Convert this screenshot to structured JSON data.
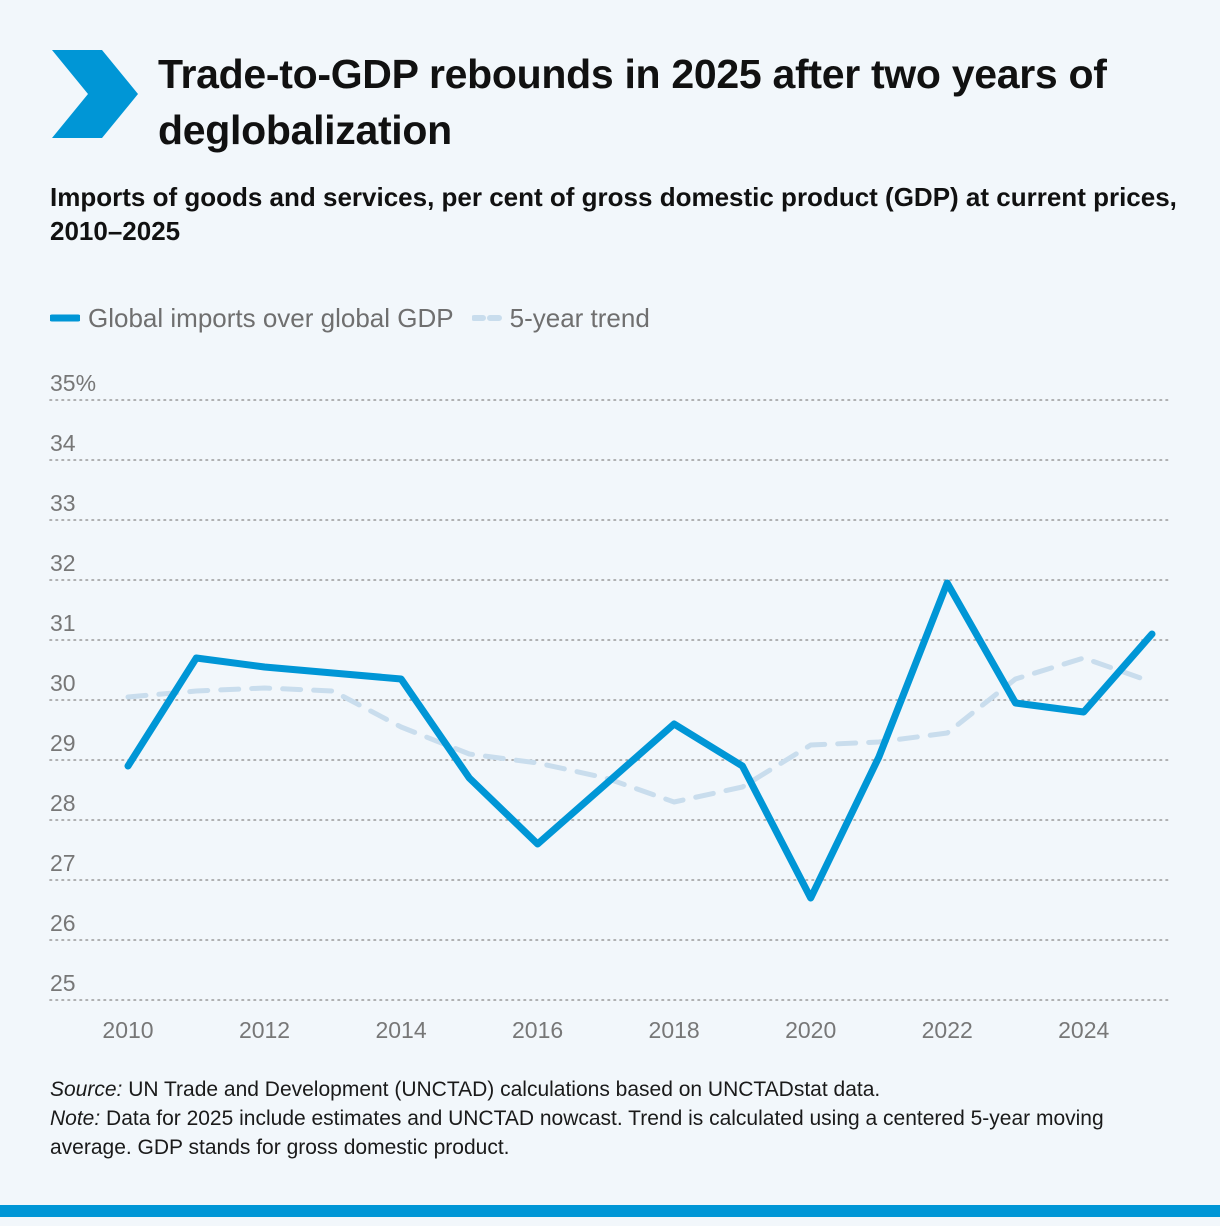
{
  "header": {
    "title": "Trade-to-GDP rebounds in 2025 after two years of deglobalization",
    "subtitle": "Imports of goods and services, per cent of gross domestic product (GDP) at current prices, 2010–2025"
  },
  "legend": {
    "series_1": "Global imports over global GDP",
    "series_2": "5-year trend"
  },
  "colors": {
    "accent": "#0096d6",
    "trend": "#c9dded",
    "grid": "#9a9a9a",
    "tick_text": "#777777",
    "background": "#f2f7fb"
  },
  "icons": {
    "brand": "chevron-right-icon"
  },
  "chart_data": {
    "type": "line",
    "title": "Trade-to-GDP rebounds in 2025 after two years of deglobalization",
    "subtitle": "Imports of goods and services, per cent of gross domestic product (GDP) at current prices, 2010–2025",
    "x": [
      2010,
      2011,
      2012,
      2013,
      2014,
      2015,
      2016,
      2017,
      2018,
      2019,
      2020,
      2021,
      2022,
      2023,
      2024,
      2025
    ],
    "series": [
      {
        "name": "Global imports over global GDP",
        "style": "solid",
        "values": [
          28.9,
          30.7,
          30.55,
          30.45,
          30.35,
          28.7,
          27.6,
          28.6,
          29.6,
          28.9,
          26.7,
          29.05,
          31.95,
          29.95,
          29.8,
          31.1
        ]
      },
      {
        "name": "5-year trend",
        "style": "dashed",
        "values": [
          30.05,
          30.15,
          30.2,
          30.15,
          29.55,
          29.1,
          28.95,
          28.7,
          28.3,
          28.55,
          29.25,
          29.3,
          29.45,
          30.35,
          30.7,
          30.3
        ]
      }
    ],
    "ylim": [
      25,
      35
    ],
    "y_ticks": [
      "35%",
      "34",
      "33",
      "32",
      "31",
      "30",
      "29",
      "28",
      "27",
      "26",
      "25"
    ],
    "x_ticks": [
      "2010",
      "2012",
      "2014",
      "2016",
      "2018",
      "2020",
      "2022",
      "2024"
    ],
    "xlabel": "",
    "ylabel": "",
    "grid": true,
    "grid_style": "dotted",
    "legend_position": "top-left"
  },
  "footer": {
    "source_label": "Source:",
    "source_text": " UN Trade and Development (UNCTAD) calculations based on UNCTADstat data.",
    "note_label": "Note:",
    "note_text": " Data for 2025 include estimates and UNCTAD nowcast. Trend is calculated using a centered 5-year moving average. GDP stands for gross domestic product."
  }
}
